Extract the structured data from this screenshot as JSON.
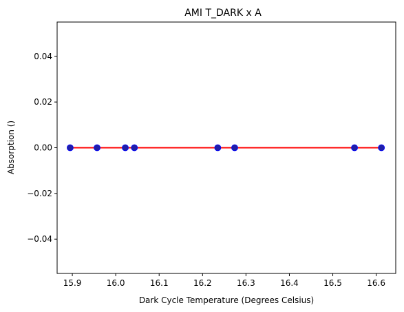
{
  "chart_data": {
    "type": "scatter",
    "title": "AMI T_DARK x A",
    "xlabel": "Dark Cycle Temperature (Degrees Celsius)",
    "ylabel": "Absorption ()",
    "xlim": [
      15.865,
      16.645
    ],
    "ylim": [
      -0.055,
      0.055
    ],
    "x_ticks": [
      "15.9",
      "16.0",
      "16.1",
      "16.2",
      "16.3",
      "16.4",
      "16.5",
      "16.6"
    ],
    "x_tick_values": [
      15.9,
      16.0,
      16.1,
      16.2,
      16.3,
      16.4,
      16.5,
      16.6
    ],
    "y_ticks": [
      "−0.04",
      "−0.02",
      "0.00",
      "0.02",
      "0.04"
    ],
    "y_tick_values": [
      -0.04,
      -0.02,
      0.0,
      0.02,
      0.04
    ],
    "grid": false,
    "points": {
      "x": [
        15.895,
        15.957,
        16.022,
        16.043,
        16.235,
        16.274,
        16.55,
        16.612
      ],
      "y": [
        0,
        0,
        0,
        0,
        0,
        0,
        0,
        0
      ],
      "color": "#1f1fa8",
      "edge_color": "#0000ff"
    },
    "fit_line": {
      "x": [
        15.895,
        16.612
      ],
      "y": [
        0,
        0
      ],
      "color": "#ff0000"
    }
  }
}
